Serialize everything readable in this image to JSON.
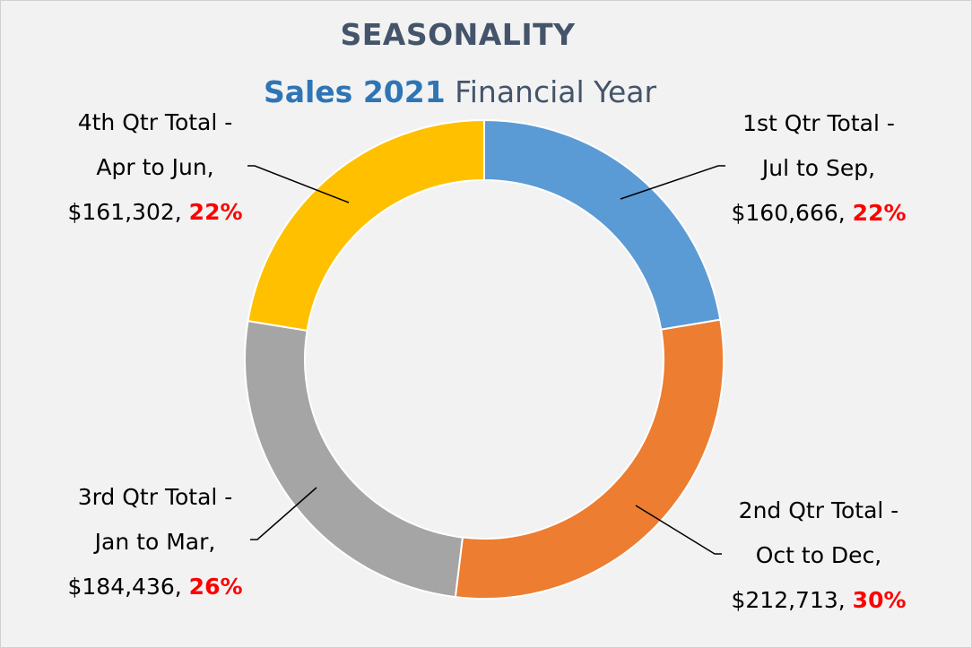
{
  "chart_data": {
    "type": "pie",
    "donut": true,
    "title": "SEASONALITY",
    "subtitle": {
      "strong": "Sales 2021",
      "rest": "Financial Year"
    },
    "slices": [
      {
        "line1": "1st Qtr Total -",
        "line2": "Jul to Sep,",
        "value_text": "$160,666,",
        "pct_text": "22%",
        "value": 160666,
        "color": "#5b9bd5"
      },
      {
        "line1": "2nd Qtr Total -",
        "line2": "Oct to Dec,",
        "value_text": "$212,713,",
        "pct_text": "30%",
        "value": 212713,
        "color": "#ed7d31"
      },
      {
        "line1": "3rd Qtr Total -",
        "line2": "Jan to Mar,",
        "value_text": "$184,436,",
        "pct_text": "26%",
        "value": 184436,
        "color": "#a5a5a5"
      },
      {
        "line1": "4th Qtr Total -",
        "line2": "Apr to Jun,",
        "value_text": "$161,302,",
        "pct_text": "22%",
        "value": 161302,
        "color": "#ffc000"
      }
    ]
  }
}
